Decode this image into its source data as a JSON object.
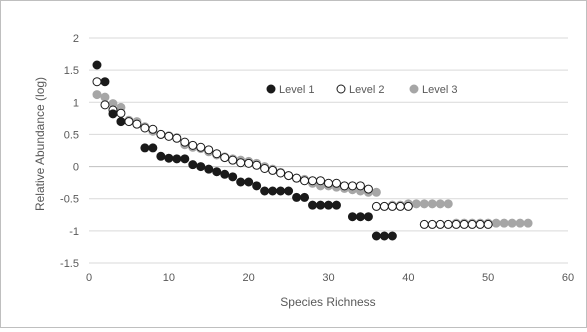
{
  "chart_data": {
    "type": "scatter",
    "title": "",
    "xlabel": "Species Richness",
    "ylabel": "Relative Abundance (log)",
    "xlim": [
      0,
      60
    ],
    "ylim": [
      -1.5,
      2
    ],
    "x_ticks": [
      "0",
      "10",
      "20",
      "30",
      "40",
      "50",
      "60"
    ],
    "y_ticks": [
      "2",
      "1.5",
      "1",
      "0.5",
      "0",
      "-0.5",
      "-1",
      "-1.5"
    ],
    "grid": "horizontal",
    "legend_placement": "top-center",
    "series": [
      {
        "name": "Level 1",
        "marker": "filled-dark",
        "color": "#1a1a1a",
        "points": [
          [
            1,
            1.58
          ],
          [
            2,
            1.32
          ],
          [
            3,
            0.82
          ],
          [
            4,
            0.7
          ],
          [
            7,
            0.29
          ],
          [
            8,
            0.29
          ],
          [
            9,
            0.16
          ],
          [
            10,
            0.13
          ],
          [
            11,
            0.12
          ],
          [
            12,
            0.12
          ],
          [
            13,
            0.03
          ],
          [
            14,
            0.0
          ],
          [
            15,
            -0.04
          ],
          [
            16,
            -0.08
          ],
          [
            17,
            -0.12
          ],
          [
            18,
            -0.16
          ],
          [
            19,
            -0.24
          ],
          [
            20,
            -0.24
          ],
          [
            21,
            -0.3
          ],
          [
            22,
            -0.38
          ],
          [
            23,
            -0.38
          ],
          [
            24,
            -0.38
          ],
          [
            25,
            -0.38
          ],
          [
            26,
            -0.48
          ],
          [
            27,
            -0.48
          ],
          [
            28,
            -0.6
          ],
          [
            29,
            -0.6
          ],
          [
            30,
            -0.6
          ],
          [
            31,
            -0.6
          ],
          [
            33,
            -0.78
          ],
          [
            34,
            -0.78
          ],
          [
            35,
            -0.78
          ],
          [
            36,
            -1.08
          ],
          [
            37,
            -1.08
          ],
          [
            38,
            -1.08
          ]
        ]
      },
      {
        "name": "Level 2",
        "marker": "open",
        "color": "#1a1a1a",
        "points": [
          [
            1,
            1.32
          ],
          [
            2,
            0.96
          ],
          [
            3,
            0.88
          ],
          [
            4,
            0.83
          ],
          [
            5,
            0.7
          ],
          [
            6,
            0.66
          ],
          [
            7,
            0.6
          ],
          [
            8,
            0.58
          ],
          [
            9,
            0.5
          ],
          [
            10,
            0.47
          ],
          [
            11,
            0.44
          ],
          [
            12,
            0.38
          ],
          [
            13,
            0.33
          ],
          [
            14,
            0.3
          ],
          [
            15,
            0.26
          ],
          [
            16,
            0.2
          ],
          [
            17,
            0.14
          ],
          [
            18,
            0.1
          ],
          [
            19,
            0.06
          ],
          [
            20,
            0.05
          ],
          [
            21,
            0.02
          ],
          [
            22,
            -0.03
          ],
          [
            23,
            -0.06
          ],
          [
            24,
            -0.1
          ],
          [
            25,
            -0.14
          ],
          [
            26,
            -0.18
          ],
          [
            27,
            -0.22
          ],
          [
            28,
            -0.22
          ],
          [
            29,
            -0.22
          ],
          [
            30,
            -0.26
          ],
          [
            31,
            -0.26
          ],
          [
            32,
            -0.3
          ],
          [
            33,
            -0.3
          ],
          [
            34,
            -0.3
          ],
          [
            35,
            -0.35
          ],
          [
            36,
            -0.62
          ],
          [
            37,
            -0.62
          ],
          [
            38,
            -0.62
          ],
          [
            39,
            -0.62
          ],
          [
            40,
            -0.62
          ],
          [
            42,
            -0.9
          ],
          [
            43,
            -0.9
          ],
          [
            44,
            -0.9
          ],
          [
            45,
            -0.9
          ],
          [
            46,
            -0.9
          ],
          [
            47,
            -0.9
          ],
          [
            48,
            -0.9
          ],
          [
            49,
            -0.9
          ],
          [
            50,
            -0.9
          ]
        ]
      },
      {
        "name": "Level 3",
        "marker": "filled-gray",
        "color": "#a6a6a6",
        "points": [
          [
            1,
            1.12
          ],
          [
            2,
            1.08
          ],
          [
            3,
            0.98
          ],
          [
            4,
            0.92
          ],
          [
            5,
            0.72
          ],
          [
            6,
            0.7
          ],
          [
            7,
            0.62
          ],
          [
            8,
            0.55
          ],
          [
            9,
            0.5
          ],
          [
            10,
            0.48
          ],
          [
            11,
            0.45
          ],
          [
            12,
            0.34
          ],
          [
            13,
            0.3
          ],
          [
            14,
            0.28
          ],
          [
            15,
            0.23
          ],
          [
            16,
            0.18
          ],
          [
            17,
            0.15
          ],
          [
            18,
            0.12
          ],
          [
            19,
            0.1
          ],
          [
            20,
            0.08
          ],
          [
            21,
            0.05
          ],
          [
            22,
            0.0
          ],
          [
            23,
            -0.04
          ],
          [
            24,
            -0.09
          ],
          [
            25,
            -0.14
          ],
          [
            26,
            -0.18
          ],
          [
            27,
            -0.2
          ],
          [
            28,
            -0.26
          ],
          [
            29,
            -0.3
          ],
          [
            30,
            -0.3
          ],
          [
            31,
            -0.32
          ],
          [
            32,
            -0.34
          ],
          [
            33,
            -0.36
          ],
          [
            34,
            -0.38
          ],
          [
            35,
            -0.4
          ],
          [
            36,
            -0.4
          ],
          [
            38,
            -0.6
          ],
          [
            39,
            -0.6
          ],
          [
            40,
            -0.58
          ],
          [
            41,
            -0.58
          ],
          [
            42,
            -0.58
          ],
          [
            43,
            -0.58
          ],
          [
            44,
            -0.58
          ],
          [
            45,
            -0.58
          ],
          [
            46,
            -0.88
          ],
          [
            47,
            -0.88
          ],
          [
            48,
            -0.88
          ],
          [
            49,
            -0.88
          ],
          [
            50,
            -0.88
          ],
          [
            51,
            -0.88
          ],
          [
            52,
            -0.88
          ],
          [
            53,
            -0.88
          ],
          [
            54,
            -0.88
          ],
          [
            55,
            -0.88
          ]
        ]
      }
    ]
  },
  "colors": {
    "grid": "#d9d9d9",
    "axis": "#bfbfbf",
    "text": "#595959",
    "level1_fill": "#1a1a1a",
    "level2_stroke": "#1a1a1a",
    "level2_fill": "#ffffff",
    "level3_fill": "#a6a6a6"
  }
}
